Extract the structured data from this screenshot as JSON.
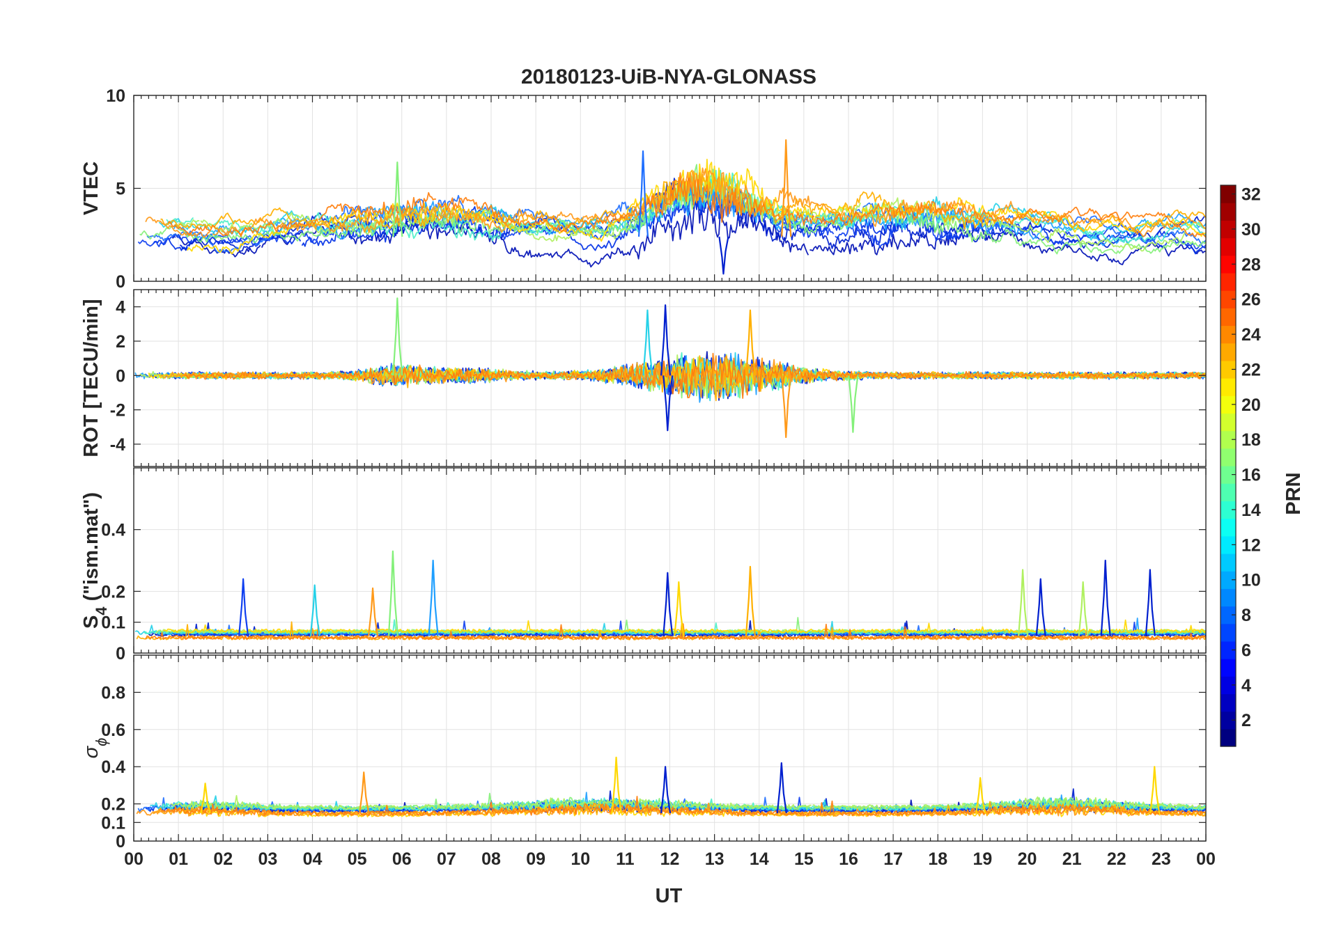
{
  "chart_data": {
    "type": "line",
    "title": "20180123-UiB-NYA-GLONASS",
    "xlabel": "UT",
    "x_range_hours": [
      0,
      24
    ],
    "x_tick_labels": [
      "00",
      "01",
      "02",
      "03",
      "04",
      "05",
      "06",
      "07",
      "08",
      "09",
      "10",
      "11",
      "12",
      "13",
      "14",
      "15",
      "16",
      "17",
      "18",
      "19",
      "20",
      "21",
      "22",
      "23",
      "00"
    ],
    "grid": true,
    "panels": [
      {
        "name": "vtec",
        "ylabel": "VTEC",
        "ylim": [
          0,
          10
        ],
        "yticks": [
          0,
          5,
          10
        ],
        "ytick_labels": [
          "0",
          "5",
          "10"
        ],
        "style": "trend",
        "base": 2.4,
        "spread": 0.6,
        "noise": 0.35,
        "bumps": [
          [
            12.8,
            1.5,
            2.2
          ],
          [
            6.5,
            2.5,
            0.8
          ],
          [
            17.5,
            2.5,
            0.8
          ]
        ],
        "spikes": [
          {
            "hour": 5.9,
            "value": 6.4,
            "color": "#84f07a"
          },
          {
            "hour": 11.4,
            "value": 7.0,
            "color": "#1f6fff"
          },
          {
            "hour": 14.6,
            "value": 7.6,
            "color": "#ff9a1a"
          },
          {
            "hour": 13.2,
            "value": 0.4,
            "color": "#0020cf"
          }
        ]
      },
      {
        "name": "rot",
        "ylabel": "ROT [TECU/min]",
        "ylim": [
          -5.3,
          5
        ],
        "yticks": [
          -4,
          -2,
          0,
          2,
          4
        ],
        "ytick_labels": [
          "-4",
          "-2",
          "0",
          "2",
          "4"
        ],
        "style": "oscillation",
        "base": 0,
        "spread": 0,
        "noise": 0.18,
        "bumps": [
          [
            12.9,
            1.8,
            1.1
          ],
          [
            5.8,
            0.7,
            0.35
          ],
          [
            7.2,
            1.2,
            0.25
          ]
        ],
        "spikes": [
          {
            "hour": 5.9,
            "value": 4.5,
            "color": "#84f07a"
          },
          {
            "hour": 11.9,
            "value": 4.1,
            "color": "#0020cf"
          },
          {
            "hour": 11.5,
            "value": 3.8,
            "color": "#27d1e8"
          },
          {
            "hour": 13.8,
            "value": 3.8,
            "color": "#ffb000"
          },
          {
            "hour": 11.95,
            "value": -3.2,
            "color": "#0020cf"
          },
          {
            "hour": 14.6,
            "value": -3.6,
            "color": "#ff9a1a"
          },
          {
            "hour": 16.1,
            "value": -3.3,
            "color": "#84f07a"
          }
        ]
      },
      {
        "name": "s4",
        "ylabel_main": "S",
        "ylabel_sub": "4",
        "ylabel_rest": " (\"ism.mat\")",
        "ylim": [
          0,
          0.6
        ],
        "yticks": [
          0,
          0.1,
          0.2,
          0.4
        ],
        "ytick_labels": [
          "0",
          "0.1",
          "0.2",
          "0.4"
        ],
        "style": "floor",
        "base": 0.055,
        "spread": 0.012,
        "noise": 0.012,
        "bumps": [],
        "spikes": [
          {
            "hour": 5.8,
            "value": 0.33,
            "color": "#84f07a"
          },
          {
            "hour": 6.7,
            "value": 0.3,
            "color": "#1f9fff"
          },
          {
            "hour": 13.8,
            "value": 0.28,
            "color": "#ffb000"
          },
          {
            "hour": 21.75,
            "value": 0.3,
            "color": "#0020cf"
          },
          {
            "hour": 22.75,
            "value": 0.27,
            "color": "#0020cf"
          },
          {
            "hour": 2.45,
            "value": 0.24,
            "color": "#1040f0"
          },
          {
            "hour": 20.3,
            "value": 0.24,
            "color": "#0020cf"
          },
          {
            "hour": 11.95,
            "value": 0.26,
            "color": "#0020cf"
          },
          {
            "hour": 12.2,
            "value": 0.23,
            "color": "#ffd800"
          },
          {
            "hour": 4.05,
            "value": 0.22,
            "color": "#27d1e8"
          },
          {
            "hour": 5.35,
            "value": 0.21,
            "color": "#ff9a1a"
          },
          {
            "hour": 19.9,
            "value": 0.27,
            "color": "#b0f060"
          },
          {
            "hour": 21.25,
            "value": 0.23,
            "color": "#b0f060"
          }
        ]
      },
      {
        "name": "sigma",
        "ylabel_main": "σ",
        "ylabel_sub": "ϕ",
        "ylim": [
          0,
          1
        ],
        "yticks": [
          0,
          0.1,
          0.2,
          0.4,
          0.6,
          0.8
        ],
        "ytick_labels": [
          "0",
          "0.1",
          "0.2",
          "0.4",
          "0.6",
          "0.8"
        ],
        "style": "floor",
        "base": 0.15,
        "spread": 0.02,
        "noise": 0.025,
        "bumps": [
          [
            10.5,
            2.5,
            0.05
          ],
          [
            20.8,
            2.0,
            0.05
          ],
          [
            1.5,
            1.5,
            0.03
          ]
        ],
        "spikes": [
          {
            "hour": 10.8,
            "value": 0.45,
            "color": "#ffd800"
          },
          {
            "hour": 14.5,
            "value": 0.42,
            "color": "#0020cf"
          },
          {
            "hour": 22.85,
            "value": 0.4,
            "color": "#ffd800"
          },
          {
            "hour": 5.15,
            "value": 0.37,
            "color": "#ff9a1a"
          },
          {
            "hour": 11.9,
            "value": 0.4,
            "color": "#0020cf"
          },
          {
            "hour": 1.6,
            "value": 0.31,
            "color": "#ffd800"
          },
          {
            "hour": 18.95,
            "value": 0.34,
            "color": "#ffd800"
          }
        ]
      }
    ],
    "colorbar": {
      "label": "PRN",
      "range": [
        1,
        32
      ],
      "ticks": [
        2,
        4,
        6,
        8,
        10,
        12,
        14,
        16,
        18,
        20,
        22,
        24,
        26,
        28,
        30,
        32
      ],
      "tick_labels": [
        "2",
        "4",
        "6",
        "8",
        "10",
        "12",
        "14",
        "16",
        "18",
        "20",
        "22",
        "24",
        "26",
        "28",
        "30",
        "32"
      ],
      "colormap": "jet"
    },
    "series": [
      {
        "prn": 1,
        "color": "#0010b5",
        "seed": 11
      },
      {
        "prn": 2,
        "color": "#0020cf",
        "seed": 23
      },
      {
        "prn": 3,
        "color": "#0030e6",
        "seed": 37
      },
      {
        "prn": 4,
        "color": "#1040f0",
        "seed": 41
      },
      {
        "prn": 5,
        "color": "#1f6fff",
        "seed": 53
      },
      {
        "prn": 8,
        "color": "#1f9fff",
        "seed": 67
      },
      {
        "prn": 10,
        "color": "#27d1e8",
        "seed": 71
      },
      {
        "prn": 12,
        "color": "#4ef0c8",
        "seed": 83
      },
      {
        "prn": 14,
        "color": "#84f07a",
        "seed": 97
      },
      {
        "prn": 16,
        "color": "#b0f060",
        "seed": 101
      },
      {
        "prn": 20,
        "color": "#ffd800",
        "seed": 113
      },
      {
        "prn": 22,
        "color": "#ffb000",
        "seed": 127
      },
      {
        "prn": 23,
        "color": "#ff9a1a",
        "seed": 131
      },
      {
        "prn": 24,
        "color": "#ff7f0e",
        "seed": 139
      }
    ]
  }
}
